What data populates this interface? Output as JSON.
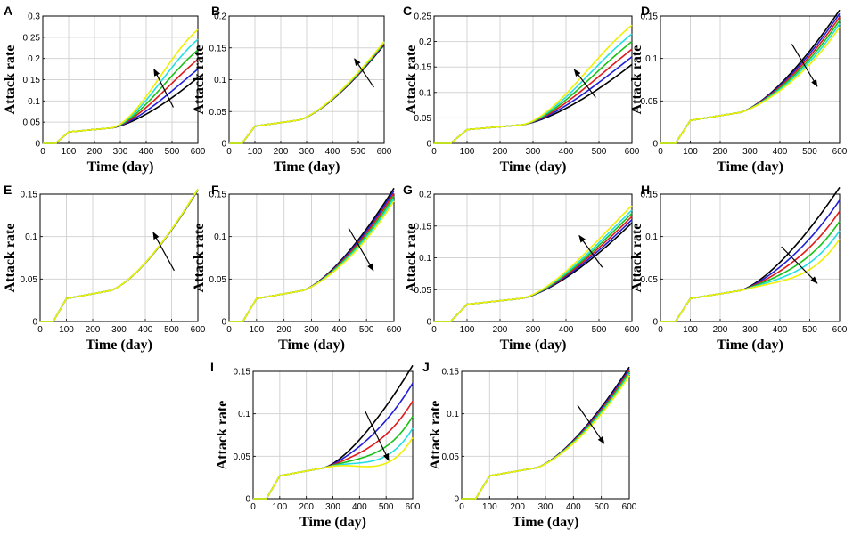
{
  "figure": {
    "series_order": [
      "black",
      "blue",
      "red",
      "green",
      "cyan",
      "yellow"
    ],
    "series_colors": {
      "black": "#000000",
      "blue": "#1f1fd8",
      "red": "#e01a1a",
      "green": "#18c218",
      "cyan": "#22e0e0",
      "yellow": "#f0f000"
    }
  },
  "chart_data": [
    {
      "label": "A",
      "type": "line",
      "xlabel": "Time (day)",
      "ylabel": "Attack rate",
      "xlim": [
        0,
        600
      ],
      "ylim": [
        0,
        0.3
      ],
      "xticks": [
        "0",
        "100",
        "200",
        "300",
        "400",
        "500",
        "600"
      ],
      "yticks": [
        "0",
        "0.05",
        "0.1",
        "0.15",
        "0.2",
        "0.25",
        "0.3"
      ],
      "split_day": 260,
      "base_end": 0.155,
      "end_values": [
        0.155,
        0.175,
        0.198,
        0.22,
        0.245,
        0.268
      ],
      "arrow": {
        "from": [
          505,
          0.085
        ],
        "to": [
          430,
          0.175
        ]
      }
    },
    {
      "label": "B",
      "type": "line",
      "xlabel": "Time (day)",
      "ylabel": "Attack rate",
      "xlim": [
        0,
        600
      ],
      "ylim": [
        0,
        0.2
      ],
      "xticks": [
        "0",
        "100",
        "200",
        "300",
        "400",
        "500",
        "600"
      ],
      "yticks": [
        "0",
        "0.05",
        "0.1",
        "0.15",
        "0.2"
      ],
      "split_day": 260,
      "base_end": 0.155,
      "end_values": [
        0.155,
        0.156,
        0.157,
        0.158,
        0.159,
        0.16
      ],
      "arrow": {
        "from": [
          560,
          0.088
        ],
        "to": [
          485,
          0.133
        ]
      }
    },
    {
      "label": "C",
      "type": "line",
      "xlabel": "Time (day)",
      "ylabel": "Attack rate",
      "xlim": [
        0,
        600
      ],
      "ylim": [
        0,
        0.25
      ],
      "xticks": [
        "0",
        "100",
        "200",
        "300",
        "400",
        "500",
        "600"
      ],
      "yticks": [
        "0",
        "0.05",
        "0.1",
        "0.15",
        "0.2",
        "0.25"
      ],
      "split_day": 260,
      "base_end": 0.155,
      "end_values": [
        0.155,
        0.17,
        0.185,
        0.2,
        0.215,
        0.232
      ],
      "arrow": {
        "from": [
          490,
          0.09
        ],
        "to": [
          425,
          0.145
        ]
      }
    },
    {
      "label": "D",
      "type": "line",
      "xlabel": "Time (day)",
      "ylabel": "Attack rate",
      "xlim": [
        0,
        600
      ],
      "ylim": [
        0,
        0.15
      ],
      "xticks": [
        "0",
        "100",
        "200",
        "300",
        "400",
        "500",
        "600"
      ],
      "yticks": [
        "0",
        "0.05",
        "0.1",
        "0.15"
      ],
      "split_day": 260,
      "base_end": 0.157,
      "end_values": [
        0.157,
        0.153,
        0.149,
        0.145,
        0.141,
        0.137
      ],
      "arrow": {
        "from": [
          440,
          0.117
        ],
        "to": [
          525,
          0.067
        ]
      }
    },
    {
      "label": "E",
      "type": "line",
      "xlabel": "Time (day)",
      "ylabel": "Attack rate",
      "xlim": [
        0,
        600
      ],
      "ylim": [
        0,
        0.15
      ],
      "xticks": [
        "0",
        "100",
        "200",
        "300",
        "400",
        "500",
        "600"
      ],
      "yticks": [
        "0",
        "0.05",
        "0.1",
        "0.15"
      ],
      "split_day": 260,
      "base_end": 0.155,
      "end_values": [
        0.155,
        0.1552,
        0.1554,
        0.1556,
        0.1558,
        0.156
      ],
      "arrow": {
        "from": [
          510,
          0.06
        ],
        "to": [
          430,
          0.105
        ]
      }
    },
    {
      "label": "F",
      "type": "line",
      "xlabel": "Time (day)",
      "ylabel": "Attack rate",
      "xlim": [
        0,
        600
      ],
      "ylim": [
        0,
        0.15
      ],
      "xticks": [
        "0",
        "100",
        "200",
        "300",
        "400",
        "500",
        "600"
      ],
      "yticks": [
        "0",
        "0.05",
        "0.1",
        "0.15"
      ],
      "split_day": 260,
      "base_end": 0.157,
      "end_values": [
        0.157,
        0.154,
        0.151,
        0.148,
        0.145,
        0.142
      ],
      "arrow": {
        "from": [
          435,
          0.11
        ],
        "to": [
          525,
          0.06
        ]
      }
    },
    {
      "label": "G",
      "type": "line",
      "xlabel": "Time (day)",
      "ylabel": "Attack rate",
      "xlim": [
        0,
        600
      ],
      "ylim": [
        0,
        0.2
      ],
      "xticks": [
        "0",
        "100",
        "200",
        "300",
        "400",
        "500",
        "600"
      ],
      "yticks": [
        "0",
        "0.05",
        "0.1",
        "0.15",
        "0.2"
      ],
      "split_day": 260,
      "base_end": 0.155,
      "end_values": [
        0.155,
        0.16,
        0.165,
        0.17,
        0.175,
        0.182
      ],
      "arrow": {
        "from": [
          510,
          0.085
        ],
        "to": [
          440,
          0.135
        ]
      }
    },
    {
      "label": "H",
      "type": "line",
      "xlabel": "Time (day)",
      "ylabel": "Attack rate",
      "xlim": [
        0,
        600
      ],
      "ylim": [
        0,
        0.15
      ],
      "xticks": [
        "0",
        "100",
        "200",
        "300",
        "400",
        "500",
        "600"
      ],
      "yticks": [
        "0",
        "0.05",
        "0.1",
        "0.15"
      ],
      "split_day": 260,
      "base_end": 0.158,
      "end_values": [
        0.158,
        0.143,
        0.13,
        0.118,
        0.107,
        0.097
      ],
      "arrow": {
        "from": [
          405,
          0.088
        ],
        "to": [
          525,
          0.045
        ]
      }
    },
    {
      "label": "I",
      "type": "line",
      "xlabel": "Time (day)",
      "ylabel": "Attack rate",
      "xlim": [
        0,
        600
      ],
      "ylim": [
        0,
        0.15
      ],
      "xticks": [
        "0",
        "100",
        "200",
        "300",
        "400",
        "500",
        "600"
      ],
      "yticks": [
        "0",
        "0.05",
        "0.1",
        "0.15"
      ],
      "split_day": 260,
      "base_end": 0.157,
      "end_values": [
        0.157,
        0.136,
        0.115,
        0.097,
        0.083,
        0.072
      ],
      "arrow": {
        "from": [
          420,
          0.104
        ],
        "to": [
          510,
          0.045
        ]
      }
    },
    {
      "label": "J",
      "type": "line",
      "xlabel": "Time (day)",
      "ylabel": "Attack rate",
      "xlim": [
        0,
        600
      ],
      "ylim": [
        0,
        0.15
      ],
      "xticks": [
        "0",
        "100",
        "200",
        "300",
        "400",
        "500",
        "600"
      ],
      "yticks": [
        "0",
        "0.05",
        "0.1",
        "0.15"
      ],
      "split_day": 260,
      "base_end": 0.155,
      "end_values": [
        0.155,
        0.153,
        0.151,
        0.149,
        0.147,
        0.145
      ],
      "arrow": {
        "from": [
          415,
          0.11
        ],
        "to": [
          510,
          0.065
        ]
      }
    }
  ]
}
